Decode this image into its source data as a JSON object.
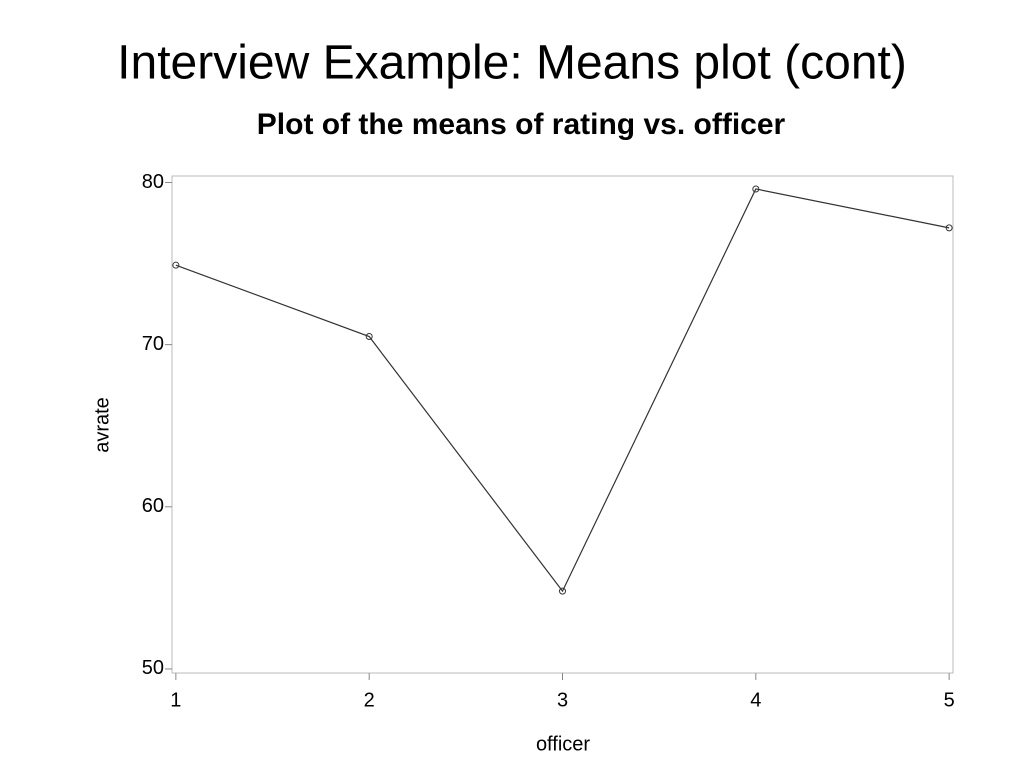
{
  "slide_title": "Interview Example: Means plot (cont)",
  "chart_data": {
    "type": "line",
    "title": "Plot of the means of rating vs. officer",
    "x_label": "officer",
    "y_label": "avrate",
    "x": [
      1,
      2,
      3,
      4,
      5
    ],
    "values": [
      74.9,
      70.5,
      54.8,
      79.6,
      77.2
    ],
    "color": "#333333",
    "xlim": [
      0.98,
      5.02
    ],
    "xticks": [
      1,
      2,
      3,
      4,
      5
    ],
    "ylim": [
      49.75,
      80.4
    ],
    "yticks": [
      50,
      60,
      70,
      80
    ],
    "grid": false
  }
}
